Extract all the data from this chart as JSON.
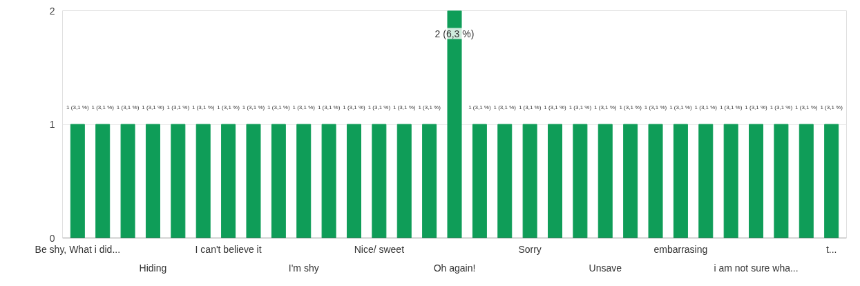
{
  "chart_data": {
    "type": "bar",
    "categories": [
      "Be shy, What i did...",
      null,
      null,
      "Hiding",
      null,
      null,
      "I can't believe it",
      null,
      null,
      "I'm shy",
      null,
      null,
      "Nice/ sweet",
      null,
      null,
      "Oh again!",
      null,
      null,
      "Sorry",
      null,
      null,
      "Unsave",
      null,
      null,
      "embarrasing",
      null,
      null,
      "i am not sure wha...",
      null,
      null,
      "t..."
    ],
    "series": [
      {
        "color": "#0f9d58",
        "values": [
          1,
          1,
          1,
          1,
          1,
          1,
          1,
          1,
          1,
          1,
          1,
          1,
          1,
          1,
          1,
          2,
          1,
          1,
          1,
          1,
          1,
          1,
          1,
          1,
          1,
          1,
          1,
          1,
          1,
          1,
          1
        ],
        "value_labels": [
          "1 (3,1 %)",
          "1 (3,1 %)",
          "1 (3,1 %)",
          "1 (3,1 %)",
          "1 (3,1 %)",
          "1 (3,1 %)",
          "1 (3,1 %)",
          "1 (3,1 %)",
          "1 (3,1 %)",
          "1 (3,1 %)",
          "1 (3,1 %)",
          "1 (3,1 %)",
          "1 (3,1 %)",
          "1 (3,1 %)",
          "1 (3,1 %)",
          "2 (6,3 %)",
          "1 (3,1 %)",
          "1 (3,1 %)",
          "1 (3,1 %)",
          "1 (3,1 %)",
          "1 (3,1 %)",
          "1 (3,1 %)",
          "1 (3,1 %)",
          "1 (3,1 %)",
          "1 (3,1 %)",
          "1 (3,1 %)",
          "1 (3,1 %)",
          "1 (3,1 %)",
          "1 (3,1 %)",
          "1 (3,1 %)",
          "1 (3,1 %)"
        ]
      }
    ],
    "ylim": [
      0,
      2
    ],
    "yticks": [
      0,
      1,
      2
    ],
    "grid": "y"
  }
}
